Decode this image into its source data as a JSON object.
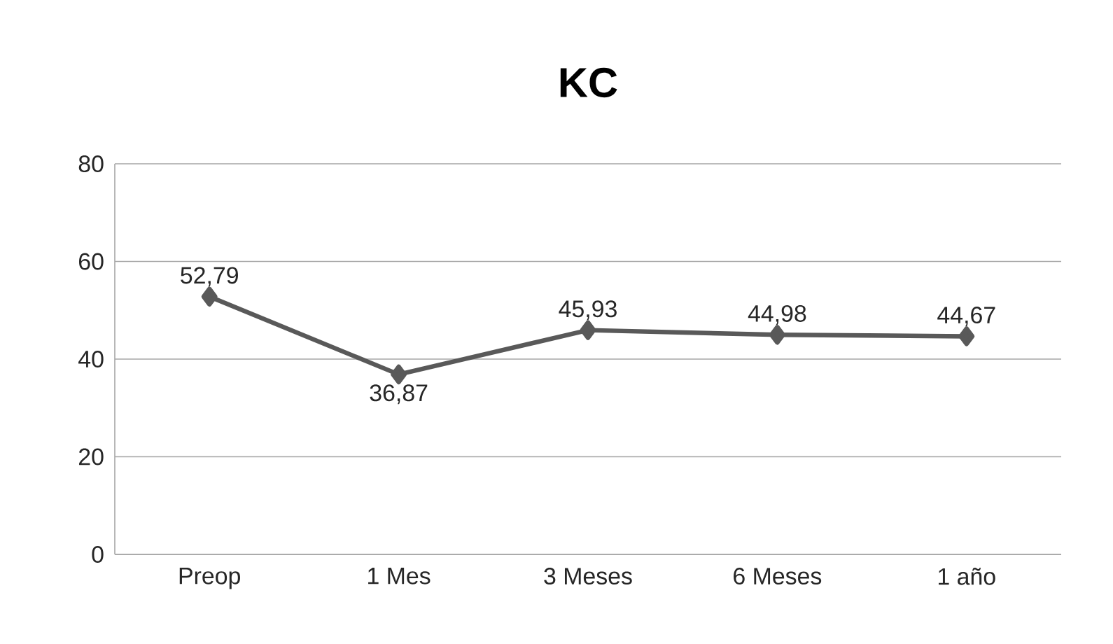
{
  "chart_data": {
    "type": "line",
    "title": "KC",
    "categories": [
      "Preop",
      "1 Mes",
      "3 Meses",
      "6 Meses",
      "1 año"
    ],
    "series": [
      {
        "color": "#595959",
        "values": [
          52.79,
          36.87,
          45.93,
          44.98,
          44.67
        ],
        "value_labels": [
          "52,79",
          "36,87",
          "45,93",
          "44,98",
          "44,67"
        ]
      }
    ],
    "ylim": [
      0,
      80
    ],
    "yticks": [
      0,
      20,
      40,
      60,
      80
    ],
    "grid": "y",
    "marker": "diamond",
    "line_style": "solid"
  }
}
